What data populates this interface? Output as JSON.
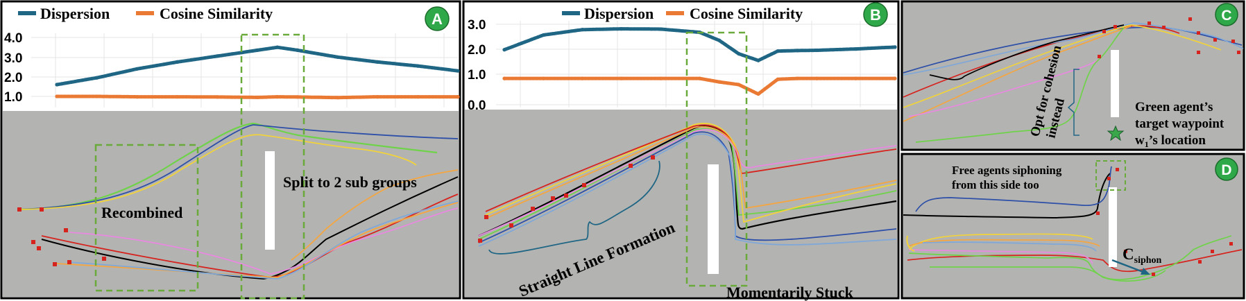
{
  "colors": {
    "dispersion": "#1f6685",
    "cosine": "#ea7a33",
    "badge": "#2fa84a",
    "dashed_box": "#6aaa3a",
    "floor": "#b3b3b1",
    "obstacle": "#ffffff",
    "waypoint": "#d6231e"
  },
  "chart_data": [
    {
      "panel": "A",
      "type": "line",
      "legend": [
        "Dispersion",
        "Cosine Similarity"
      ],
      "y_ticks": [
        "4.0",
        "3.0",
        "2.0",
        "1.0"
      ],
      "ylim": [
        0.5,
        4.2
      ],
      "x": [
        0,
        0.1,
        0.2,
        0.3,
        0.4,
        0.5,
        0.55,
        0.6,
        0.7,
        0.8,
        0.9,
        1.0
      ],
      "series": [
        {
          "name": "Dispersion",
          "values": [
            1.6,
            1.95,
            2.4,
            2.75,
            3.05,
            3.35,
            3.5,
            3.35,
            3.0,
            2.75,
            2.55,
            2.3
          ]
        },
        {
          "name": "Cosine Similarity",
          "values": [
            1.0,
            1.0,
            0.98,
            0.98,
            0.97,
            0.95,
            0.98,
            0.97,
            0.94,
            0.98,
            0.98,
            0.98
          ]
        }
      ],
      "annotations": [
        "Recombined",
        "Split to 2 sub groups"
      ]
    },
    {
      "panel": "B",
      "type": "line",
      "legend": [
        "Dispersion",
        "Cosine Similarity"
      ],
      "y_ticks": [
        "3.0",
        "2.0",
        "1.0",
        "0.0"
      ],
      "ylim": [
        0,
        3.2
      ],
      "x": [
        0,
        0.1,
        0.2,
        0.3,
        0.4,
        0.5,
        0.55,
        0.6,
        0.65,
        0.7,
        0.75,
        0.8,
        0.9,
        1.0
      ],
      "series": [
        {
          "name": "Dispersion",
          "values": [
            2.05,
            2.6,
            2.8,
            2.83,
            2.82,
            2.7,
            2.4,
            1.9,
            1.65,
            2.0,
            2.02,
            2.03,
            2.08,
            2.15
          ]
        },
        {
          "name": "Cosine Similarity",
          "values": [
            0.98,
            0.98,
            0.98,
            0.98,
            0.98,
            0.98,
            0.85,
            0.75,
            0.4,
            0.95,
            0.98,
            0.98,
            0.98,
            0.98
          ]
        }
      ],
      "annotations": [
        "Straight Line Formation",
        "Momentarily Stuck"
      ]
    }
  ],
  "panels": {
    "A": {
      "badge": "A",
      "legend_dispersion": "Dispersion",
      "legend_cosine": "Cosine Similarity",
      "label_recombined": "Recombined",
      "label_split": "Split to 2 sub groups"
    },
    "B": {
      "badge": "B",
      "legend_dispersion": "Dispersion",
      "legend_cosine": "Cosine Similarity",
      "label_straight": "Straight Line Formation",
      "label_stuck": "Momentarily Stuck"
    },
    "C": {
      "badge": "C",
      "label_cohesion_1": "Opt for cohesion",
      "label_cohesion_2": "instead",
      "label_green_1": "Green agent’s",
      "label_green_2": "target waypoint",
      "label_green_3": "w",
      "label_green_3_sub": "1",
      "label_green_3_rest": "’s location"
    },
    "D": {
      "badge": "D",
      "label_free_1": "Free agents siphoning",
      "label_free_2": "from this side too",
      "label_csiphon": "C",
      "label_csiphon_sub": "siphon"
    }
  },
  "axis_ticks_A": [
    "4.0",
    "3.0",
    "2.0",
    "1.0"
  ],
  "axis_ticks_B": [
    "3.0",
    "2.0",
    "1.0",
    "0.0"
  ]
}
